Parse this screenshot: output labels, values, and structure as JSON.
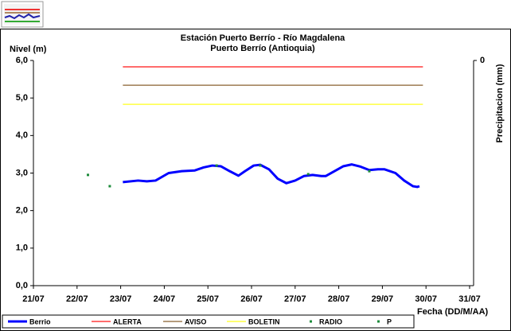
{
  "chart_data": {
    "type": "line",
    "title": "Estación Puerto Berrío - Río Magdalena",
    "subtitle": "Puerto Berrío (Antioquia)",
    "y_label": "Nivel (m)",
    "y2_label": "Precipitacion (mm)",
    "x_label": "Fecha (DD/M/AA)",
    "xlim": [
      21,
      31
    ],
    "xticks": [
      {
        "value": 21,
        "label": "21/07"
      },
      {
        "value": 22,
        "label": "22/07"
      },
      {
        "value": 23,
        "label": "23/07"
      },
      {
        "value": 24,
        "label": "24/07"
      },
      {
        "value": 25,
        "label": "25/07"
      },
      {
        "value": 26,
        "label": "26/07"
      },
      {
        "value": 27,
        "label": "27/07"
      },
      {
        "value": 28,
        "label": "28/07"
      },
      {
        "value": 29,
        "label": "29/07"
      },
      {
        "value": 30,
        "label": "30/07"
      },
      {
        "value": 31,
        "label": "31/07"
      }
    ],
    "ylim": [
      0,
      6
    ],
    "yticks": [
      {
        "value": 0,
        "label": "0,0"
      },
      {
        "value": 1,
        "label": "1,0"
      },
      {
        "value": 2,
        "label": "2,0"
      },
      {
        "value": 3,
        "label": "3,0"
      },
      {
        "value": 4,
        "label": "4,0"
      },
      {
        "value": 5,
        "label": "5,0"
      },
      {
        "value": 6,
        "label": "6,0"
      }
    ],
    "y2ticks": [
      0
    ],
    "grid": false,
    "legend": "bottom",
    "series": [
      {
        "name": "Berrio",
        "color": "#0000ff",
        "style": "line",
        "x": [
          23.05,
          23.4,
          23.6,
          23.8,
          24.1,
          24.4,
          24.7,
          24.9,
          25.1,
          25.3,
          25.5,
          25.7,
          25.85,
          26.05,
          26.2,
          26.4,
          26.6,
          26.8,
          27.0,
          27.2,
          27.4,
          27.6,
          27.7,
          27.9,
          28.1,
          28.3,
          28.5,
          28.7,
          28.9,
          29.05,
          29.3,
          29.5,
          29.7,
          29.8,
          29.85
        ],
        "values": [
          2.76,
          2.8,
          2.78,
          2.8,
          3.0,
          3.05,
          3.07,
          3.15,
          3.2,
          3.18,
          3.05,
          2.93,
          3.05,
          3.2,
          3.22,
          3.1,
          2.85,
          2.73,
          2.8,
          2.92,
          2.95,
          2.92,
          2.92,
          3.05,
          3.18,
          3.23,
          3.17,
          3.08,
          3.1,
          3.1,
          3.0,
          2.8,
          2.65,
          2.63,
          2.65
        ]
      },
      {
        "name": "ALERTA",
        "color": "#ff3b3b",
        "style": "thin",
        "x": [
          23.05,
          29.93
        ],
        "values": [
          5.83,
          5.83
        ]
      },
      {
        "name": "AVISO",
        "color": "#9c7a50",
        "style": "thin",
        "x": [
          23.05,
          29.93
        ],
        "values": [
          5.34,
          5.34
        ]
      },
      {
        "name": "BOLETIN",
        "color": "#ffff40",
        "style": "thin",
        "x": [
          23.05,
          29.93
        ],
        "values": [
          4.83,
          4.83
        ]
      },
      {
        "name": "RADIO",
        "color": "#1e8c3c",
        "style": "points",
        "x": [
          22.25,
          22.75,
          25.2,
          26.2,
          27.3,
          28.7
        ],
        "values": [
          2.95,
          2.65,
          3.2,
          3.2,
          2.97,
          3.05
        ]
      },
      {
        "name": "P",
        "color": "#1e8c3c",
        "style": "points",
        "x": [],
        "values": []
      }
    ]
  }
}
